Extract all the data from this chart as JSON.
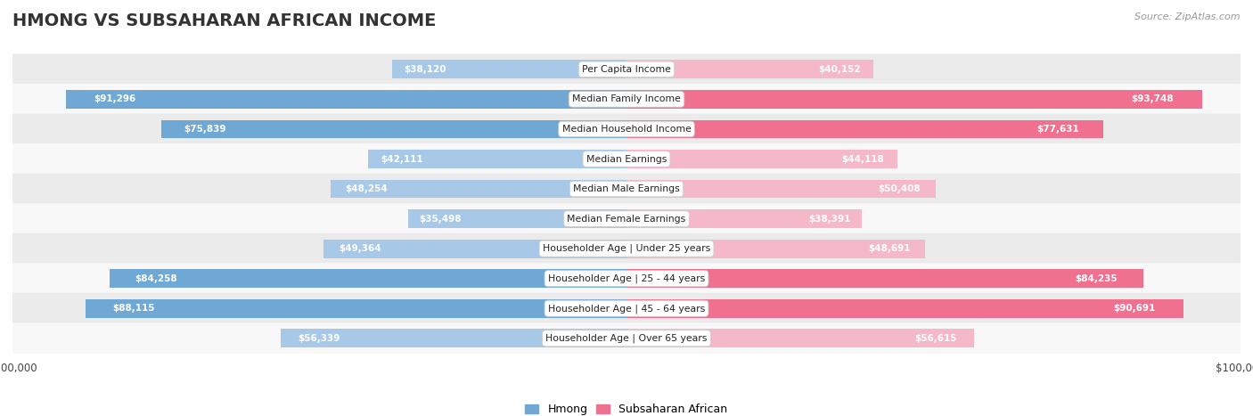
{
  "title": "HMONG VS SUBSAHARAN AFRICAN INCOME",
  "source": "Source: ZipAtlas.com",
  "categories": [
    "Per Capita Income",
    "Median Family Income",
    "Median Household Income",
    "Median Earnings",
    "Median Male Earnings",
    "Median Female Earnings",
    "Householder Age | Under 25 years",
    "Householder Age | 25 - 44 years",
    "Householder Age | 45 - 64 years",
    "Householder Age | Over 65 years"
  ],
  "hmong_values": [
    38120,
    91296,
    75839,
    42111,
    48254,
    35498,
    49364,
    84258,
    88115,
    56339
  ],
  "subsaharan_values": [
    40152,
    93748,
    77631,
    44118,
    50408,
    38391,
    48691,
    84235,
    90691,
    56615
  ],
  "hmong_labels": [
    "$38,120",
    "$91,296",
    "$75,839",
    "$42,111",
    "$48,254",
    "$35,498",
    "$49,364",
    "$84,258",
    "$88,115",
    "$56,339"
  ],
  "subsaharan_labels": [
    "$40,152",
    "$93,748",
    "$77,631",
    "$44,118",
    "$50,408",
    "$38,391",
    "$48,691",
    "$84,235",
    "$90,691",
    "$56,615"
  ],
  "max_value": 100000,
  "hmong_color_light": "#a8c8e8",
  "hmong_color_dark": "#6fa8d4",
  "subsaharan_color_light": "#f5b8c8",
  "subsaharan_color_dark": "#f07090",
  "label_color_inside": "#ffffff",
  "label_color_outside": "#555555",
  "background_color": "#ffffff",
  "row_bg_odd": "#ebebeb",
  "row_bg_even": "#f8f8f8",
  "legend_hmong": "Hmong",
  "legend_subsaharan": "Subsaharan African",
  "title_fontsize": 14,
  "bar_height": 0.62,
  "inside_threshold": 20000
}
